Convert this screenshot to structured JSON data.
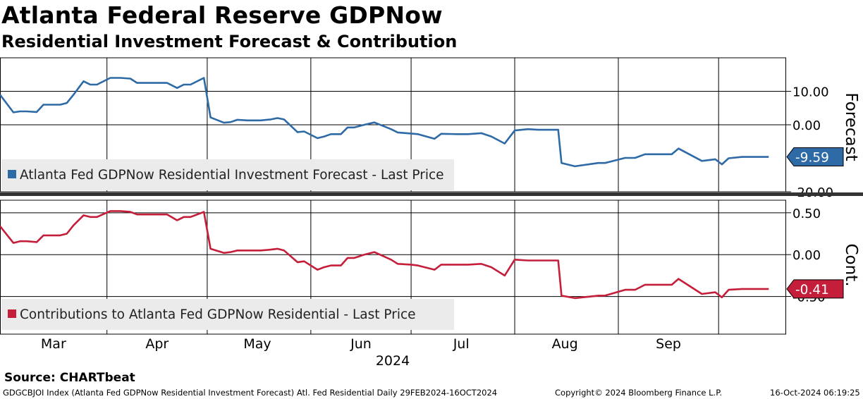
{
  "header": {
    "title": "Atlanta Federal Reserve GDPNow",
    "subtitle": "Residential Investment Forecast & Contribution"
  },
  "footer": {
    "source": "Source: CHARTbeat",
    "ticker_desc": "GDGCBJOI Index (Atlanta Fed GDPNow Residential Investment Forecast) Atl. Fed Residential  Daily 29FEB2024-16OCT2024",
    "copyright": "Copyright© 2024 Bloomberg Finance L.P.",
    "timestamp": "16-Oct-2024 06:19:25"
  },
  "colors": {
    "forecast": "#2e6aa6",
    "contribution": "#c41e3a"
  },
  "chart_data": [
    {
      "type": "line",
      "panel": "top",
      "axis_title": "Forecast",
      "ylim": [
        -20,
        20
      ],
      "yticks": [
        10,
        0,
        -20
      ],
      "ytick_labels": [
        "10.00",
        "0.00",
        "-20.00"
      ],
      "grid": true,
      "legend": "Atlanta Fed GDPNow Residential Investment Forecast - Last Price",
      "last_value_label": "-9.59",
      "last_value": -9.59,
      "series": [
        {
          "name": "Atlanta Fed GDPNow Residential Investment Forecast - Last Price",
          "x": [
            "2024-02-29",
            "2024-03-04",
            "2024-03-06",
            "2024-03-08",
            "2024-03-11",
            "2024-03-13",
            "2024-03-15",
            "2024-03-18",
            "2024-03-20",
            "2024-03-22",
            "2024-03-25",
            "2024-03-27",
            "2024-03-29",
            "2024-04-02",
            "2024-04-05",
            "2024-04-08",
            "2024-04-10",
            "2024-04-12",
            "2024-04-15",
            "2024-04-17",
            "2024-04-19",
            "2024-04-22",
            "2024-04-24",
            "2024-04-26",
            "2024-04-30",
            "2024-05-02",
            "2024-05-06",
            "2024-05-08",
            "2024-05-10",
            "2024-05-13",
            "2024-05-15",
            "2024-05-17",
            "2024-05-20",
            "2024-05-22",
            "2024-05-24",
            "2024-05-28",
            "2024-05-30",
            "2024-06-03",
            "2024-06-05",
            "2024-06-07",
            "2024-06-10",
            "2024-06-12",
            "2024-06-14",
            "2024-06-17",
            "2024-06-20",
            "2024-06-25",
            "2024-06-27",
            "2024-07-01",
            "2024-07-03",
            "2024-07-08",
            "2024-07-10",
            "2024-07-15",
            "2024-07-18",
            "2024-07-22",
            "2024-07-25",
            "2024-07-29",
            "2024-08-01",
            "2024-08-05",
            "2024-08-08",
            "2024-08-14",
            "2024-08-15",
            "2024-08-19",
            "2024-08-26",
            "2024-08-28",
            "2024-09-03",
            "2024-09-06",
            "2024-09-09",
            "2024-09-11",
            "2024-09-17",
            "2024-09-19",
            "2024-09-26",
            "2024-09-30",
            "2024-10-02",
            "2024-10-04",
            "2024-10-08",
            "2024-10-10",
            "2024-10-16"
          ],
          "values": [
            9.0,
            3.7,
            4.0,
            4.0,
            3.8,
            6.0,
            6.0,
            6.0,
            6.5,
            9.0,
            13.0,
            12.0,
            12.0,
            14.0,
            14.0,
            13.8,
            12.5,
            12.5,
            12.5,
            12.5,
            12.5,
            11.0,
            12.0,
            12.0,
            14.0,
            2.2,
            0.6,
            0.8,
            1.5,
            1.3,
            1.3,
            1.3,
            1.6,
            2.0,
            1.6,
            -2.2,
            -2.0,
            -4.0,
            -3.5,
            -2.8,
            -2.8,
            -0.8,
            -0.8,
            0.0,
            0.7,
            -1.3,
            -2.3,
            -2.6,
            -2.8,
            -4.2,
            -2.7,
            -2.8,
            -2.8,
            -2.5,
            -3.5,
            -5.6,
            -1.7,
            -1.3,
            -1.5,
            -1.5,
            -11.4,
            -12.4,
            -11.4,
            -11.4,
            -9.9,
            -9.9,
            -8.8,
            -8.8,
            -8.8,
            -7.1,
            -10.8,
            -10.3,
            -11.8,
            -10.0,
            -9.6,
            -9.59,
            -9.59
          ]
        }
      ]
    },
    {
      "type": "line",
      "panel": "bottom",
      "axis_title": "Cont.",
      "ylim": [
        -0.95,
        0.65
      ],
      "yticks": [
        0.5,
        0,
        -0.5
      ],
      "ytick_labels": [
        "0.50",
        "0.00",
        "-0.50"
      ],
      "grid": true,
      "legend": "Contributions to Atlanta Fed GDPNow Residential - Last Price",
      "last_value_label": "-0.41",
      "last_value": -0.41,
      "series": [
        {
          "name": "Contributions to Atlanta Fed GDPNow Residential - Last Price",
          "x": [
            "2024-02-29",
            "2024-03-04",
            "2024-03-06",
            "2024-03-08",
            "2024-03-11",
            "2024-03-13",
            "2024-03-15",
            "2024-03-18",
            "2024-03-20",
            "2024-03-22",
            "2024-03-25",
            "2024-03-27",
            "2024-03-29",
            "2024-04-02",
            "2024-04-05",
            "2024-04-08",
            "2024-04-10",
            "2024-04-12",
            "2024-04-15",
            "2024-04-17",
            "2024-04-19",
            "2024-04-22",
            "2024-04-24",
            "2024-04-26",
            "2024-04-30",
            "2024-05-02",
            "2024-05-06",
            "2024-05-08",
            "2024-05-10",
            "2024-05-13",
            "2024-05-15",
            "2024-05-17",
            "2024-05-20",
            "2024-05-22",
            "2024-05-24",
            "2024-05-28",
            "2024-05-30",
            "2024-06-03",
            "2024-06-05",
            "2024-06-07",
            "2024-06-10",
            "2024-06-12",
            "2024-06-14",
            "2024-06-17",
            "2024-06-20",
            "2024-06-25",
            "2024-06-27",
            "2024-07-01",
            "2024-07-03",
            "2024-07-08",
            "2024-07-10",
            "2024-07-15",
            "2024-07-18",
            "2024-07-22",
            "2024-07-25",
            "2024-07-29",
            "2024-08-01",
            "2024-08-05",
            "2024-08-08",
            "2024-08-14",
            "2024-08-15",
            "2024-08-19",
            "2024-08-26",
            "2024-08-28",
            "2024-09-03",
            "2024-09-06",
            "2024-09-09",
            "2024-09-11",
            "2024-09-17",
            "2024-09-19",
            "2024-09-26",
            "2024-09-30",
            "2024-10-02",
            "2024-10-04",
            "2024-10-08",
            "2024-10-10",
            "2024-10-16"
          ],
          "values": [
            0.34,
            0.14,
            0.16,
            0.16,
            0.15,
            0.23,
            0.23,
            0.23,
            0.25,
            0.35,
            0.47,
            0.45,
            0.45,
            0.52,
            0.52,
            0.51,
            0.48,
            0.48,
            0.48,
            0.48,
            0.48,
            0.41,
            0.45,
            0.45,
            0.51,
            0.07,
            0.02,
            0.03,
            0.05,
            0.05,
            0.05,
            0.05,
            0.06,
            0.07,
            0.05,
            -0.09,
            -0.08,
            -0.18,
            -0.15,
            -0.13,
            -0.13,
            -0.04,
            -0.04,
            0.0,
            0.03,
            -0.06,
            -0.11,
            -0.12,
            -0.13,
            -0.18,
            -0.12,
            -0.12,
            -0.12,
            -0.11,
            -0.15,
            -0.25,
            -0.06,
            -0.07,
            -0.07,
            -0.07,
            -0.49,
            -0.52,
            -0.49,
            -0.49,
            -0.42,
            -0.42,
            -0.36,
            -0.36,
            -0.36,
            -0.29,
            -0.47,
            -0.45,
            -0.51,
            -0.42,
            -0.41,
            -0.41,
            -0.41
          ]
        }
      ]
    }
  ],
  "x_axis": {
    "months": [
      "Mar",
      "Apr",
      "May",
      "Jun",
      "Jul",
      "Aug",
      "Sep"
    ],
    "month_dates": [
      "2024-03-16",
      "2024-04-16",
      "2024-05-16",
      "2024-06-16",
      "2024-07-16",
      "2024-08-16",
      "2024-09-16"
    ],
    "gridline_dates": [
      "2024-04-01",
      "2024-05-01",
      "2024-06-01",
      "2024-07-01",
      "2024-08-01",
      "2024-09-01",
      "2024-10-01"
    ],
    "year_label": "2024",
    "range": [
      "2024-02-29",
      "2024-10-21"
    ]
  }
}
